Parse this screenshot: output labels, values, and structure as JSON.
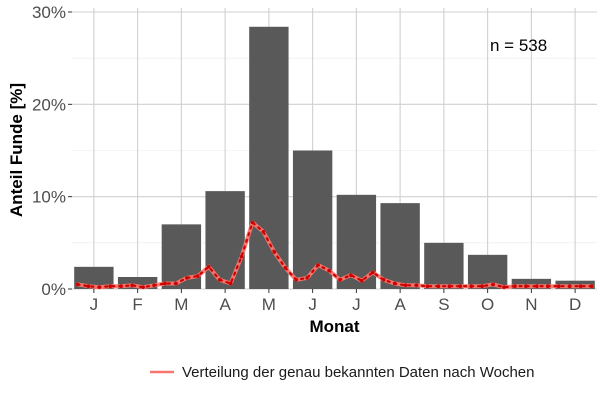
{
  "chart_data": {
    "type": "bar",
    "categories": [
      "J",
      "F",
      "M",
      "A",
      "M",
      "J",
      "J",
      "A",
      "S",
      "O",
      "N",
      "D"
    ],
    "values": [
      2.4,
      1.3,
      7.0,
      10.6,
      28.4,
      15.0,
      10.2,
      9.3,
      5.0,
      3.7,
      1.1,
      0.9
    ],
    "xlabel": "Monat",
    "ylabel": "Anteil Funde [%]",
    "ylim": [
      0,
      30
    ],
    "yticks": [
      0,
      10,
      20,
      30
    ],
    "ytick_labels": [
      "0%",
      "10%",
      "20%",
      "30%"
    ],
    "annotation": "n = 538",
    "grid": true,
    "legend_position": "bottom",
    "line_series": {
      "name": "Verteilung der genau bekannten Daten nach Wochen",
      "weeks_per_month": 4,
      "values": [
        0.5,
        0.3,
        0.2,
        0.3,
        0.3,
        0.4,
        0.2,
        0.4,
        0.6,
        0.6,
        1.2,
        1.4,
        2.4,
        1.0,
        0.6,
        3.5,
        7.2,
        6.2,
        4.0,
        2.3,
        1.0,
        1.2,
        2.6,
        2.0,
        1.0,
        1.5,
        0.9,
        1.8,
        1.0,
        0.6,
        0.4,
        0.4,
        0.3,
        0.3,
        0.3,
        0.3,
        0.3,
        0.3,
        0.5,
        0.2,
        0.3,
        0.3,
        0.3,
        0.3,
        0.3,
        0.3,
        0.3,
        0.3
      ]
    },
    "colors": {
      "bar": "#595959",
      "line": "#f8766d",
      "dots": "#cc0000",
      "grid": "#d0d0d0",
      "panel_bg": "#ffffff"
    }
  }
}
